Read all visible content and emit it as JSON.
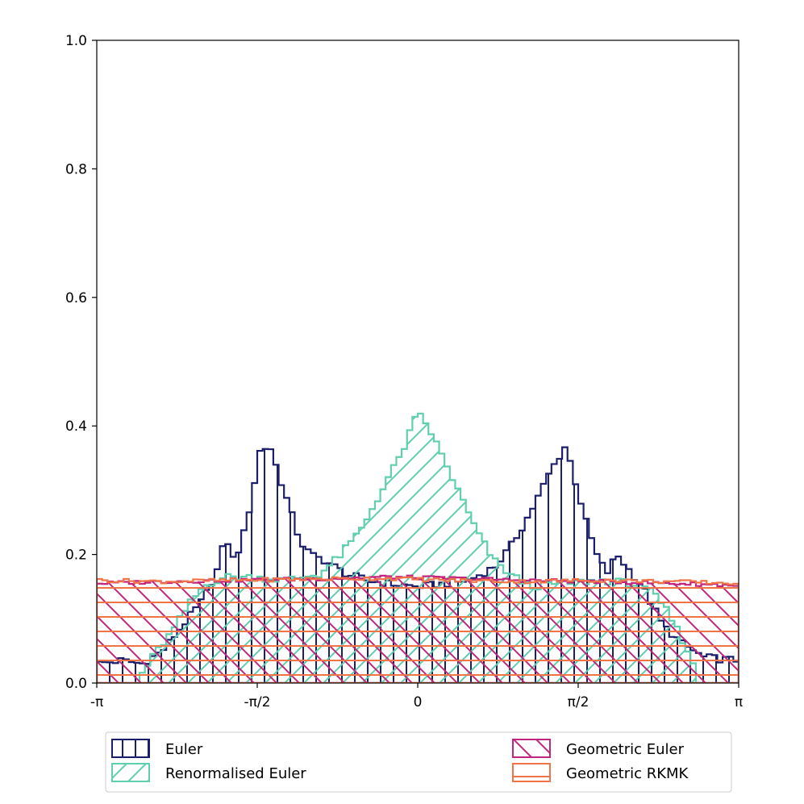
{
  "chart_data": {
    "type": "histogram",
    "title": "",
    "xlabel": "",
    "ylabel": "",
    "xlim": [
      -3.14159,
      3.14159
    ],
    "ylim": [
      0,
      1.0
    ],
    "x_ticks": [
      {
        "value": -3.14159,
        "label": "-π"
      },
      {
        "value": -1.5708,
        "label": "-π/2"
      },
      {
        "value": 0,
        "label": "0"
      },
      {
        "value": 1.5708,
        "label": "π/2"
      },
      {
        "value": 3.14159,
        "label": "π"
      }
    ],
    "y_ticks": [
      {
        "value": 0.0,
        "label": "0.0"
      },
      {
        "value": 0.2,
        "label": "0.2"
      },
      {
        "value": 0.4,
        "label": "0.4"
      },
      {
        "value": 0.6,
        "label": "0.6"
      },
      {
        "value": 0.8,
        "label": "0.8"
      },
      {
        "value": 1.0,
        "label": "1.0"
      }
    ],
    "legend_position": "bottom, below plot",
    "series": [
      {
        "name": "Euler",
        "color": "#1b1f6b",
        "hatch": "vertical",
        "profile": [
          [
            -3.14,
            0.03
          ],
          [
            -2.9,
            0.035
          ],
          [
            -2.7,
            0.03
          ],
          [
            -2.5,
            0.05
          ],
          [
            -2.3,
            0.09
          ],
          [
            -2.1,
            0.13
          ],
          [
            -1.95,
            0.18
          ],
          [
            -1.88,
            0.23
          ],
          [
            -1.8,
            0.19
          ],
          [
            -1.72,
            0.22
          ],
          [
            -1.62,
            0.29
          ],
          [
            -1.55,
            0.36
          ],
          [
            -1.45,
            0.37
          ],
          [
            -1.35,
            0.32
          ],
          [
            -1.25,
            0.27
          ],
          [
            -1.15,
            0.22
          ],
          [
            -1.05,
            0.2
          ],
          [
            -0.9,
            0.19
          ],
          [
            -0.7,
            0.17
          ],
          [
            -0.5,
            0.16
          ],
          [
            -0.3,
            0.155
          ],
          [
            0.0,
            0.15
          ],
          [
            0.3,
            0.155
          ],
          [
            0.5,
            0.16
          ],
          [
            0.75,
            0.18
          ],
          [
            0.9,
            0.21
          ],
          [
            1.05,
            0.25
          ],
          [
            1.15,
            0.28
          ],
          [
            1.3,
            0.33
          ],
          [
            1.45,
            0.37
          ],
          [
            1.55,
            0.31
          ],
          [
            1.65,
            0.25
          ],
          [
            1.75,
            0.2
          ],
          [
            1.85,
            0.17
          ],
          [
            1.95,
            0.2
          ],
          [
            2.05,
            0.18
          ],
          [
            2.2,
            0.15
          ],
          [
            2.4,
            0.09
          ],
          [
            2.6,
            0.06
          ],
          [
            2.8,
            0.04
          ],
          [
            3.14,
            0.035
          ]
        ]
      },
      {
        "name": "Renormalised Euler",
        "color": "#5fcfae",
        "hatch": "diagonal-up",
        "profile": [
          [
            -3.14,
            0.0
          ],
          [
            -2.75,
            0.0
          ],
          [
            -2.68,
            0.02
          ],
          [
            -2.55,
            0.05
          ],
          [
            -2.4,
            0.08
          ],
          [
            -2.25,
            0.12
          ],
          [
            -2.1,
            0.15
          ],
          [
            -1.9,
            0.165
          ],
          [
            -1.6,
            0.165
          ],
          [
            -1.3,
            0.16
          ],
          [
            -0.95,
            0.17
          ],
          [
            -0.75,
            0.2
          ],
          [
            -0.55,
            0.24
          ],
          [
            -0.35,
            0.3
          ],
          [
            -0.15,
            0.36
          ],
          [
            0.0,
            0.42
          ],
          [
            0.1,
            0.4
          ],
          [
            0.25,
            0.35
          ],
          [
            0.45,
            0.28
          ],
          [
            0.6,
            0.23
          ],
          [
            0.75,
            0.19
          ],
          [
            0.9,
            0.17
          ],
          [
            1.1,
            0.15
          ],
          [
            1.4,
            0.155
          ],
          [
            1.8,
            0.16
          ],
          [
            2.1,
            0.155
          ],
          [
            2.3,
            0.14
          ],
          [
            2.45,
            0.11
          ],
          [
            2.55,
            0.08
          ],
          [
            2.65,
            0.05
          ],
          [
            2.75,
            0.0
          ],
          [
            3.14,
            0.0
          ]
        ]
      },
      {
        "name": "Geometric Euler",
        "color": "#c2257d",
        "hatch": "diagonal-down",
        "profile": [
          [
            -3.14,
            0.155
          ],
          [
            -2.5,
            0.158
          ],
          [
            -1.8,
            0.16
          ],
          [
            -1.0,
            0.162
          ],
          [
            -0.3,
            0.165
          ],
          [
            0.3,
            0.163
          ],
          [
            1.0,
            0.16
          ],
          [
            1.8,
            0.158
          ],
          [
            2.5,
            0.155
          ],
          [
            3.14,
            0.152
          ]
        ]
      },
      {
        "name": "Geometric RKMK",
        "color": "#f07447",
        "hatch": "horizontal",
        "profile": [
          [
            -3.14,
            0.16
          ],
          [
            -2.5,
            0.158
          ],
          [
            -1.8,
            0.16
          ],
          [
            -1.0,
            0.162
          ],
          [
            -0.3,
            0.163
          ],
          [
            0.3,
            0.16
          ],
          [
            1.0,
            0.158
          ],
          [
            1.8,
            0.16
          ],
          [
            2.5,
            0.158
          ],
          [
            3.14,
            0.155
          ]
        ]
      }
    ]
  },
  "legend": {
    "items": [
      {
        "label": "Euler",
        "color": "#1b1f6b",
        "hatch": "vertical"
      },
      {
        "label": "Renormalised Euler",
        "color": "#5fcfae",
        "hatch": "diagonal-up"
      },
      {
        "label": "Geometric Euler",
        "color": "#c2257d",
        "hatch": "diagonal-down"
      },
      {
        "label": "Geometric RKMK",
        "color": "#f07447",
        "hatch": "horizontal"
      }
    ]
  }
}
